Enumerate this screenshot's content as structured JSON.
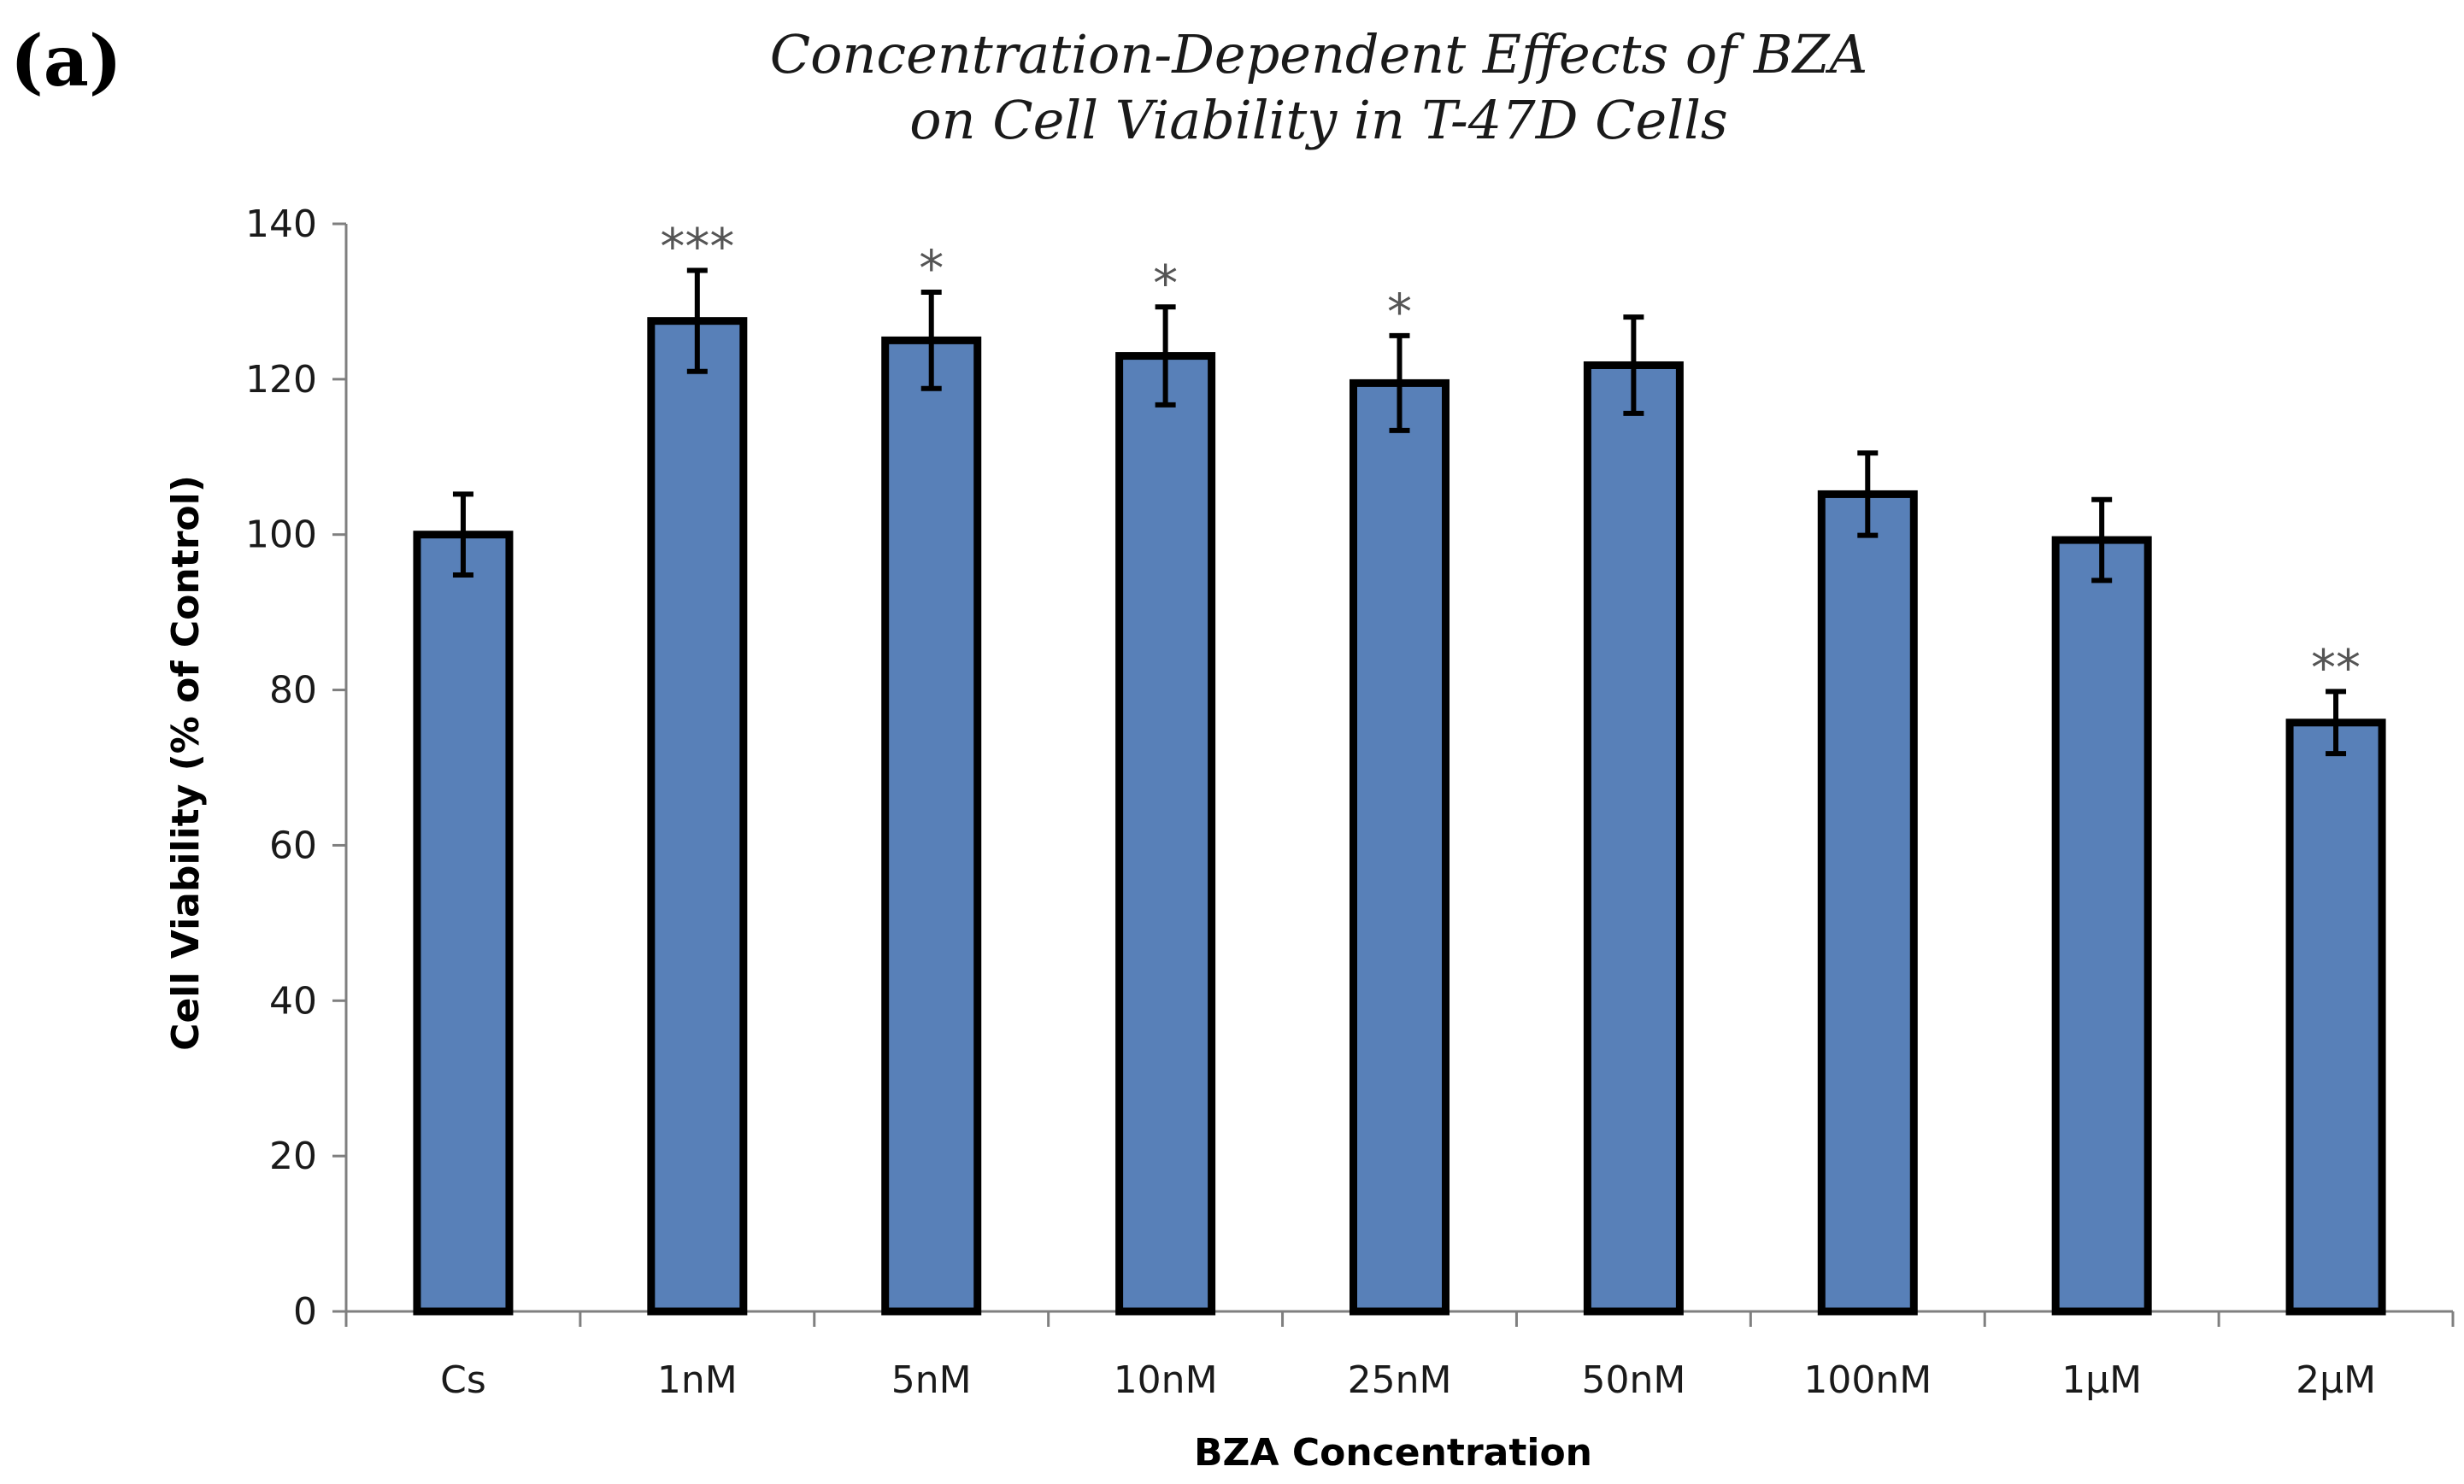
{
  "panel_label": "(a)",
  "colors": {
    "bar_fill": "#5880b8",
    "bar_outline": "#000000",
    "axis": "#7f7f7f",
    "significance": "#555555"
  },
  "chart_data": {
    "type": "bar",
    "title_lines": [
      "Concentration-Dependent Effects of BZA",
      "on Cell Viability in T-47D Cells"
    ],
    "xlabel": "BZA Concentration",
    "ylabel": "Cell Viability (% of Control)",
    "ylim": [
      0,
      140
    ],
    "yticks": [
      0,
      20,
      40,
      60,
      80,
      100,
      120,
      140
    ],
    "grid": false,
    "categories": [
      "Cs",
      "1nM",
      "5nM",
      "10nM",
      "25nM",
      "50nM",
      "100nM",
      "1µM",
      "2µM"
    ],
    "values": [
      100,
      127.5,
      125,
      123,
      119.5,
      121.8,
      105.2,
      99.3,
      75.8
    ],
    "errors": [
      5.2,
      6.5,
      6.2,
      6.3,
      6.1,
      6.2,
      5.3,
      5.2,
      4
    ],
    "significance": [
      "",
      "***",
      "*",
      "*",
      "*",
      "",
      "",
      "",
      "**"
    ]
  }
}
